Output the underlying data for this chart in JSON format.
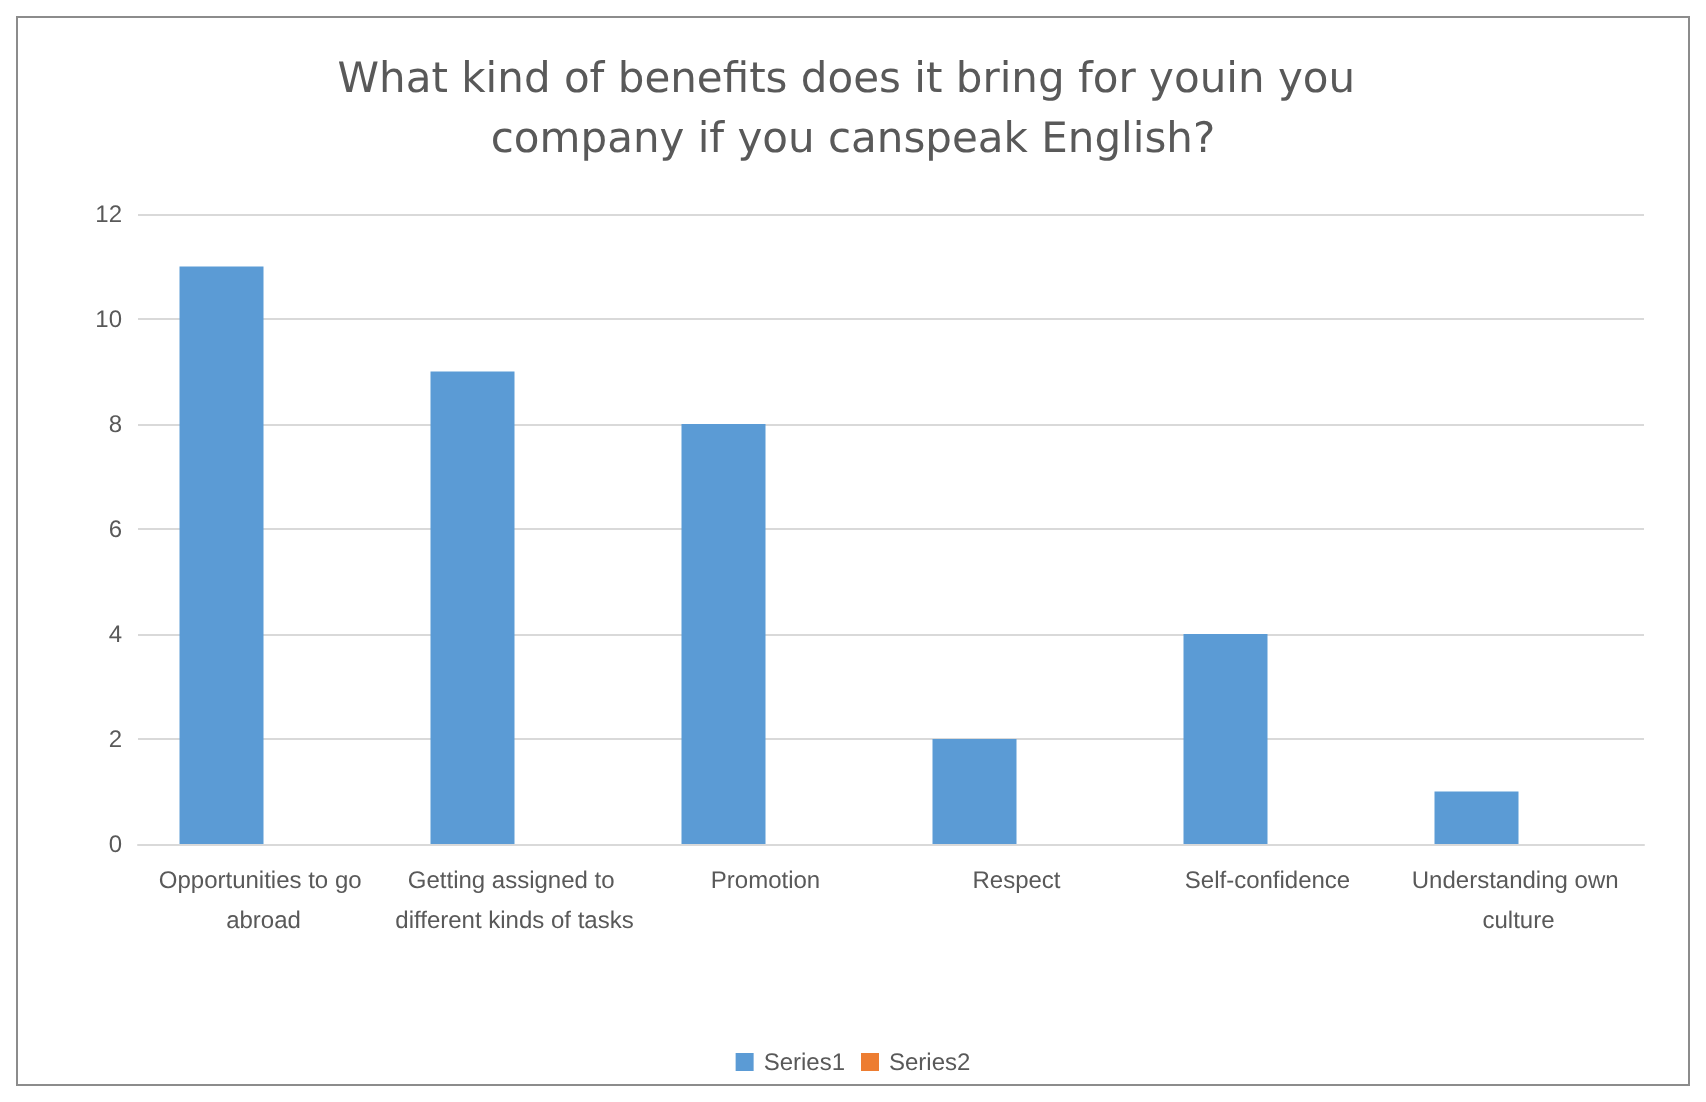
{
  "chart_data": {
    "type": "bar",
    "title": "What kind of benefits does it bring for youin you company if you canspeak English?",
    "categories": [
      "Opportunities to go abroad",
      "Getting assigned to different kinds of tasks",
      "Promotion",
      "Respect",
      "Self-confidence",
      "Understanding own culture"
    ],
    "series": [
      {
        "name": "Series1",
        "color": "#5b9bd5",
        "values": [
          11,
          9,
          8,
          2,
          4,
          1
        ]
      },
      {
        "name": "Series2",
        "color": "#ed7d31",
        "values": [
          null,
          null,
          null,
          null,
          null,
          null
        ]
      }
    ],
    "ylim": [
      0,
      12
    ],
    "yticks": [
      0,
      2,
      4,
      6,
      8,
      10,
      12
    ],
    "grid": "y",
    "legend": "bottom"
  }
}
